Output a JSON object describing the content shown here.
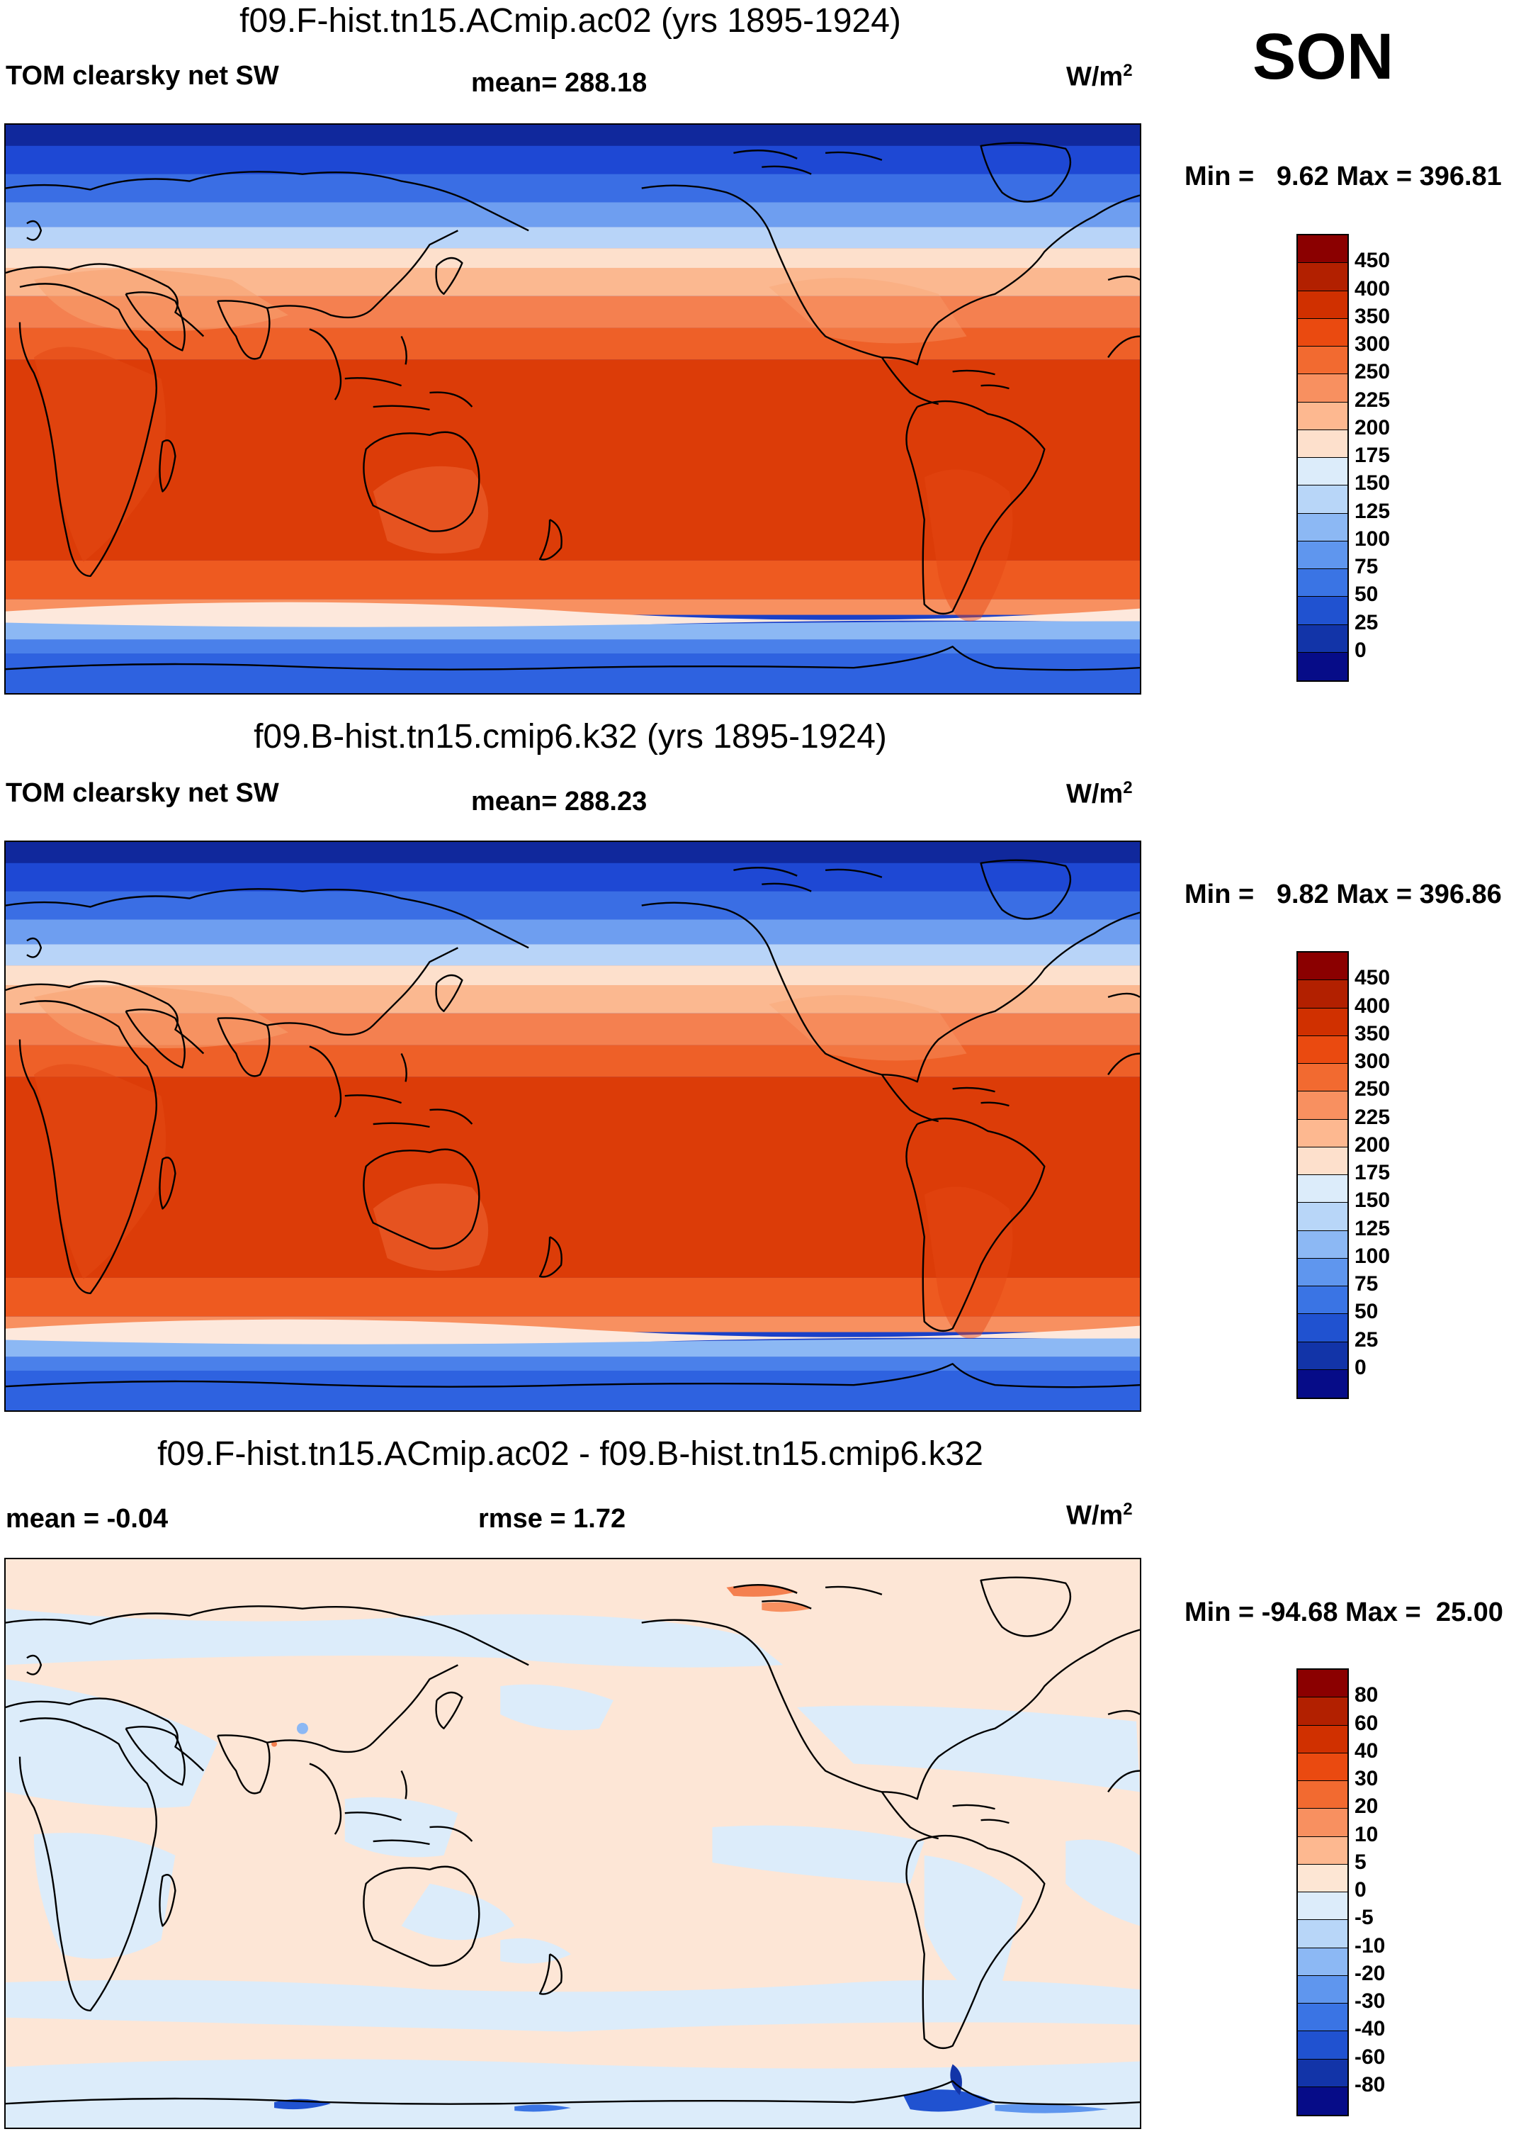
{
  "season": "SON",
  "units_text": "W/m",
  "units_sup": "2",
  "panels": [
    {
      "title": "f09.F-hist.tn15.ACmip.ac02 (yrs 1895-1924)",
      "left_label": "TOM clearsky net SW",
      "center_label": "mean= 288.18",
      "minmax": "Min =   9.62 Max = 396.81",
      "field": "abs",
      "colorbar": {
        "ticks": [
          "450",
          "400",
          "350",
          "300",
          "250",
          "225",
          "200",
          "175",
          "150",
          "125",
          "100",
          "75",
          "50",
          "25",
          "0"
        ],
        "colors": [
          "#8b0000",
          "#b22000",
          "#d03000",
          "#ea4a10",
          "#f26a30",
          "#f89060",
          "#fdb890",
          "#fde0cc",
          "#dcecfa",
          "#b8d6f8",
          "#8cb8f4",
          "#5f96ee",
          "#3a74e4",
          "#2052d0",
          "#1234a8",
          "#060c88"
        ]
      }
    },
    {
      "title": "f09.B-hist.tn15.cmip6.k32 (yrs 1895-1924)",
      "left_label": "TOM clearsky net SW",
      "center_label": "mean= 288.23",
      "minmax": "Min =   9.82 Max = 396.86",
      "field": "abs",
      "colorbar": {
        "ticks": [
          "450",
          "400",
          "350",
          "300",
          "250",
          "225",
          "200",
          "175",
          "150",
          "125",
          "100",
          "75",
          "50",
          "25",
          "0"
        ],
        "colors": [
          "#8b0000",
          "#b22000",
          "#d03000",
          "#ea4a10",
          "#f26a30",
          "#f89060",
          "#fdb890",
          "#fde0cc",
          "#dcecfa",
          "#b8d6f8",
          "#8cb8f4",
          "#5f96ee",
          "#3a74e4",
          "#2052d0",
          "#1234a8",
          "#060c88"
        ]
      }
    },
    {
      "title": "f09.F-hist.tn15.ACmip.ac02 - f09.B-hist.tn15.cmip6.k32",
      "left_label": "mean =  -0.04",
      "center_label": "rmse =    1.72",
      "minmax": "Min = -94.68 Max =  25.00",
      "field": "diff",
      "colorbar": {
        "ticks": [
          "80",
          "60",
          "40",
          "30",
          "20",
          "10",
          "5",
          "0",
          "-5",
          "-10",
          "-20",
          "-30",
          "-40",
          "-60",
          "-80"
        ],
        "colors": [
          "#8b0000",
          "#b22000",
          "#d03000",
          "#ea4a10",
          "#f26a30",
          "#f89060",
          "#fdb890",
          "#fde6d4",
          "#dcecfa",
          "#b8d6f8",
          "#8cb8f4",
          "#5f96ee",
          "#3a74e4",
          "#2052d0",
          "#1234a8",
          "#060c88"
        ]
      }
    }
  ]
}
